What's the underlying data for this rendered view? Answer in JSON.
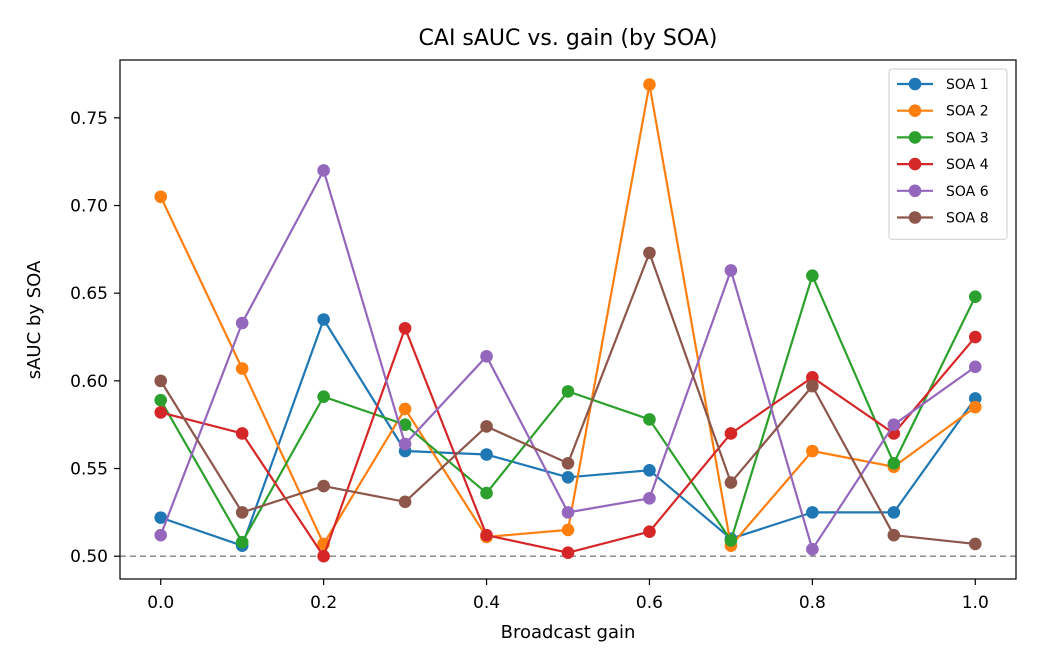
{
  "chart_data": {
    "type": "line",
    "title": "CAI sAUC vs. gain (by SOA)",
    "xlabel": "Broadcast gain",
    "ylabel": "sAUC by SOA",
    "x": [
      0.0,
      0.1,
      0.2,
      0.3,
      0.4,
      0.5,
      0.6,
      0.7,
      0.8,
      0.9,
      1.0
    ],
    "xlim": [
      -0.05,
      1.05
    ],
    "ylim": [
      0.487,
      0.783
    ],
    "xticks": [
      "0.0",
      "0.2",
      "0.4",
      "0.6",
      "0.8",
      "1.0"
    ],
    "yticks": [
      "0.50",
      "0.55",
      "0.60",
      "0.65",
      "0.70",
      "0.75"
    ],
    "reference_line": {
      "y": 0.5,
      "style": "dashed",
      "color": "#808080"
    },
    "legend_position": "top-right",
    "grid": false,
    "series": [
      {
        "name": "SOA 1",
        "color": "#1f77b4",
        "values": [
          0.522,
          0.506,
          0.635,
          0.56,
          0.558,
          0.545,
          0.549,
          0.51,
          0.525,
          0.525,
          0.59
        ]
      },
      {
        "name": "SOA 2",
        "color": "#ff7f0e",
        "values": [
          0.705,
          0.607,
          0.507,
          0.584,
          0.511,
          0.515,
          0.769,
          0.506,
          0.56,
          0.551,
          0.585
        ]
      },
      {
        "name": "SOA 3",
        "color": "#2ca02c",
        "values": [
          0.589,
          0.508,
          0.591,
          0.575,
          0.536,
          0.594,
          0.578,
          0.509,
          0.66,
          0.553,
          0.648
        ]
      },
      {
        "name": "SOA 4",
        "color": "#d62728",
        "values": [
          0.582,
          0.57,
          0.5,
          0.63,
          0.512,
          0.502,
          0.514,
          0.57,
          0.602,
          0.57,
          0.625
        ]
      },
      {
        "name": "SOA 6",
        "color": "#9467bd",
        "values": [
          0.512,
          0.633,
          0.72,
          0.564,
          0.614,
          0.525,
          0.533,
          0.663,
          0.504,
          0.575,
          0.608
        ]
      },
      {
        "name": "SOA 8",
        "color": "#8c564b",
        "values": [
          0.6,
          0.525,
          0.54,
          0.531,
          0.574,
          0.553,
          0.673,
          0.542,
          0.597,
          0.512,
          0.507
        ]
      }
    ]
  }
}
